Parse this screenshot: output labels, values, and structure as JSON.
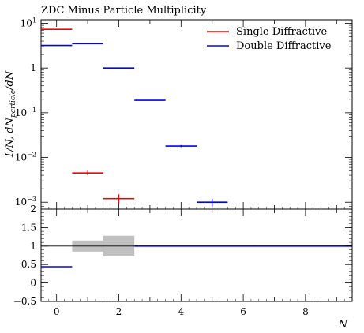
{
  "chart_data": [
    {
      "type": "scatter",
      "title": "ZDC Minus Particle Multiplicity",
      "ylabel": "1/N, dN_particle/dN",
      "yscale": "log",
      "ylim": [
        0.0007,
        12
      ],
      "xlim": [
        -0.5,
        9.5
      ],
      "y_ticks": [
        {
          "value": 10,
          "base": "10",
          "exp": "1"
        },
        {
          "value": 1,
          "base": "1",
          "exp": ""
        },
        {
          "value": 0.1,
          "base": "10",
          "exp": "−1"
        },
        {
          "value": 0.01,
          "base": "10",
          "exp": "−2"
        },
        {
          "value": 0.001,
          "base": "10",
          "exp": "−3"
        }
      ],
      "legend_position": "top-right",
      "series": [
        {
          "name": "Single Diffractive",
          "color": "#ff0000",
          "points": [
            {
              "x": 0,
              "xerr": 0.5,
              "y": 7.3,
              "yerr_lo": 0,
              "yerr_hi": 0
            },
            {
              "x": 1,
              "xerr": 0.5,
              "y": 0.0045,
              "yerr_lo": 0.0005,
              "yerr_hi": 0.0006
            },
            {
              "x": 2,
              "xerr": 0.5,
              "y": 0.0012,
              "yerr_lo": 0.00025,
              "yerr_hi": 0.0003
            }
          ]
        },
        {
          "name": "Double Diffractive",
          "color": "#0000ff",
          "points": [
            {
              "x": 0,
              "xerr": 0.5,
              "y": 3.2,
              "yerr_lo": 0,
              "yerr_hi": 0
            },
            {
              "x": 1,
              "xerr": 0.5,
              "y": 3.5,
              "yerr_lo": 0,
              "yerr_hi": 0
            },
            {
              "x": 2,
              "xerr": 0.5,
              "y": 1.0,
              "yerr_lo": 0,
              "yerr_hi": 0
            },
            {
              "x": 3,
              "xerr": 0.5,
              "y": 0.19,
              "yerr_lo": 0,
              "yerr_hi": 0
            },
            {
              "x": 4,
              "xerr": 0.5,
              "y": 0.018,
              "yerr_lo": 0.001,
              "yerr_hi": 0.001
            },
            {
              "x": 5,
              "xerr": 0.5,
              "y": 0.001,
              "yerr_lo": 0.0002,
              "yerr_hi": 0.0002
            }
          ]
        }
      ]
    },
    {
      "type": "line",
      "xlabel": "N",
      "ylim": [
        -0.5,
        2
      ],
      "xlim": [
        -0.5,
        9.5
      ],
      "y_ticks": [
        "−0.5",
        "0",
        "0.5",
        "1",
        "1.5",
        "2"
      ],
      "x_ticks": [
        "0",
        "2",
        "4",
        "6",
        "8"
      ],
      "reference_line": 1,
      "uncertainty_band": {
        "color": "#c0c0c0",
        "bins": [
          {
            "x_lo": 0.5,
            "x_hi": 1.5,
            "y_lo": 0.85,
            "y_hi": 1.15
          },
          {
            "x_lo": 1.5,
            "x_hi": 2.5,
            "y_lo": 0.72,
            "y_hi": 1.28
          }
        ]
      },
      "series": [
        {
          "name": "Double Diffractive",
          "color": "#0000ff",
          "points": [
            {
              "x": 0,
              "xerr": 0.5,
              "y": 0.44
            },
            {
              "x": 3,
              "xerr": 0.5,
              "y": 1.0
            },
            {
              "x": 4,
              "xerr": 0.5,
              "y": 1.0
            },
            {
              "x": 5,
              "xerr": 0.5,
              "y": 1.0
            },
            {
              "x": 6,
              "xerr": 0.5,
              "y": 1.0
            },
            {
              "x": 7,
              "xerr": 0.5,
              "y": 1.0
            },
            {
              "x": 8,
              "xerr": 0.5,
              "y": 1.0
            },
            {
              "x": 9,
              "xerr": 0.5,
              "y": 1.0
            }
          ]
        }
      ]
    }
  ]
}
